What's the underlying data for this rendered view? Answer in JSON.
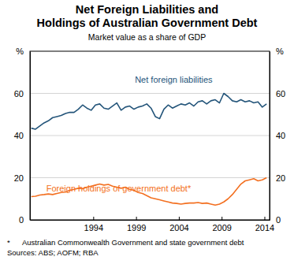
{
  "chart_data": {
    "type": "line",
    "title": "Net Foreign Liabilities and\nHoldings of Australian Government Debt",
    "subtitle": "Market value as a share of GDP",
    "y_label": "%",
    "footnote_marker": "*",
    "footnote": "Australian Commonwealth Government and state government debt",
    "source": "Sources: ABS; AOFM; RBA",
    "x": [
      1986.75,
      1987.25,
      1987.75,
      1988.25,
      1988.75,
      1989.25,
      1989.75,
      1990.25,
      1990.75,
      1991.25,
      1991.75,
      1992.25,
      1992.75,
      1993.25,
      1993.75,
      1994.25,
      1994.75,
      1995.25,
      1995.75,
      1996.25,
      1996.75,
      1997.25,
      1997.75,
      1998.25,
      1998.75,
      1999.25,
      1999.75,
      2000.25,
      2000.75,
      2001.25,
      2001.75,
      2002.25,
      2002.75,
      2003.25,
      2003.75,
      2004.25,
      2004.75,
      2005.25,
      2005.75,
      2006.25,
      2006.75,
      2007.25,
      2007.75,
      2008.25,
      2008.75,
      2009.25,
      2009.75,
      2010.25,
      2010.75,
      2011.25,
      2011.75,
      2012.25,
      2012.75,
      2013.25,
      2013.75,
      2014.25
    ],
    "series": [
      {
        "name": "Net foreign liabilities",
        "color": "#24557a",
        "values": [
          43.5,
          43.0,
          44.5,
          46.0,
          47.0,
          48.5,
          49.0,
          49.5,
          50.5,
          51.0,
          51.0,
          52.5,
          54.5,
          53.0,
          52.0,
          54.5,
          55.0,
          53.0,
          52.5,
          54.0,
          55.5,
          52.0,
          53.5,
          54.0,
          52.5,
          53.5,
          54.0,
          55.0,
          53.0,
          49.0,
          48.0,
          52.5,
          54.5,
          53.0,
          54.0,
          55.0,
          54.5,
          55.5,
          54.0,
          56.0,
          56.5,
          55.0,
          56.5,
          57.0,
          55.5,
          60.0,
          58.5,
          56.5,
          56.0,
          57.0,
          56.0,
          56.5,
          55.5,
          56.0,
          53.5,
          55.0
        ]
      },
      {
        "name": "Foreign holdings of government debt*",
        "color": "#f37021",
        "values": [
          11.0,
          11.2,
          11.8,
          12.0,
          12.3,
          12.0,
          12.5,
          13.0,
          13.2,
          14.0,
          14.5,
          15.0,
          14.8,
          15.5,
          16.0,
          16.5,
          17.0,
          16.5,
          16.8,
          16.0,
          15.5,
          15.0,
          15.5,
          14.5,
          14.0,
          13.0,
          12.5,
          11.5,
          10.5,
          10.0,
          9.5,
          9.0,
          8.5,
          8.0,
          7.8,
          7.5,
          7.8,
          8.0,
          8.0,
          8.2,
          7.8,
          8.0,
          7.5,
          7.0,
          7.5,
          8.5,
          10.0,
          12.0,
          14.5,
          17.0,
          18.5,
          19.0,
          19.5,
          18.5,
          19.0,
          20.0
        ]
      }
    ],
    "xlim": [
      1986.6,
      2014.6
    ],
    "xticks": [
      1994,
      1999,
      2004,
      2009,
      2014
    ],
    "ylim": [
      0,
      80
    ],
    "yticks": [
      0,
      20,
      40,
      60
    ],
    "grid": true
  }
}
